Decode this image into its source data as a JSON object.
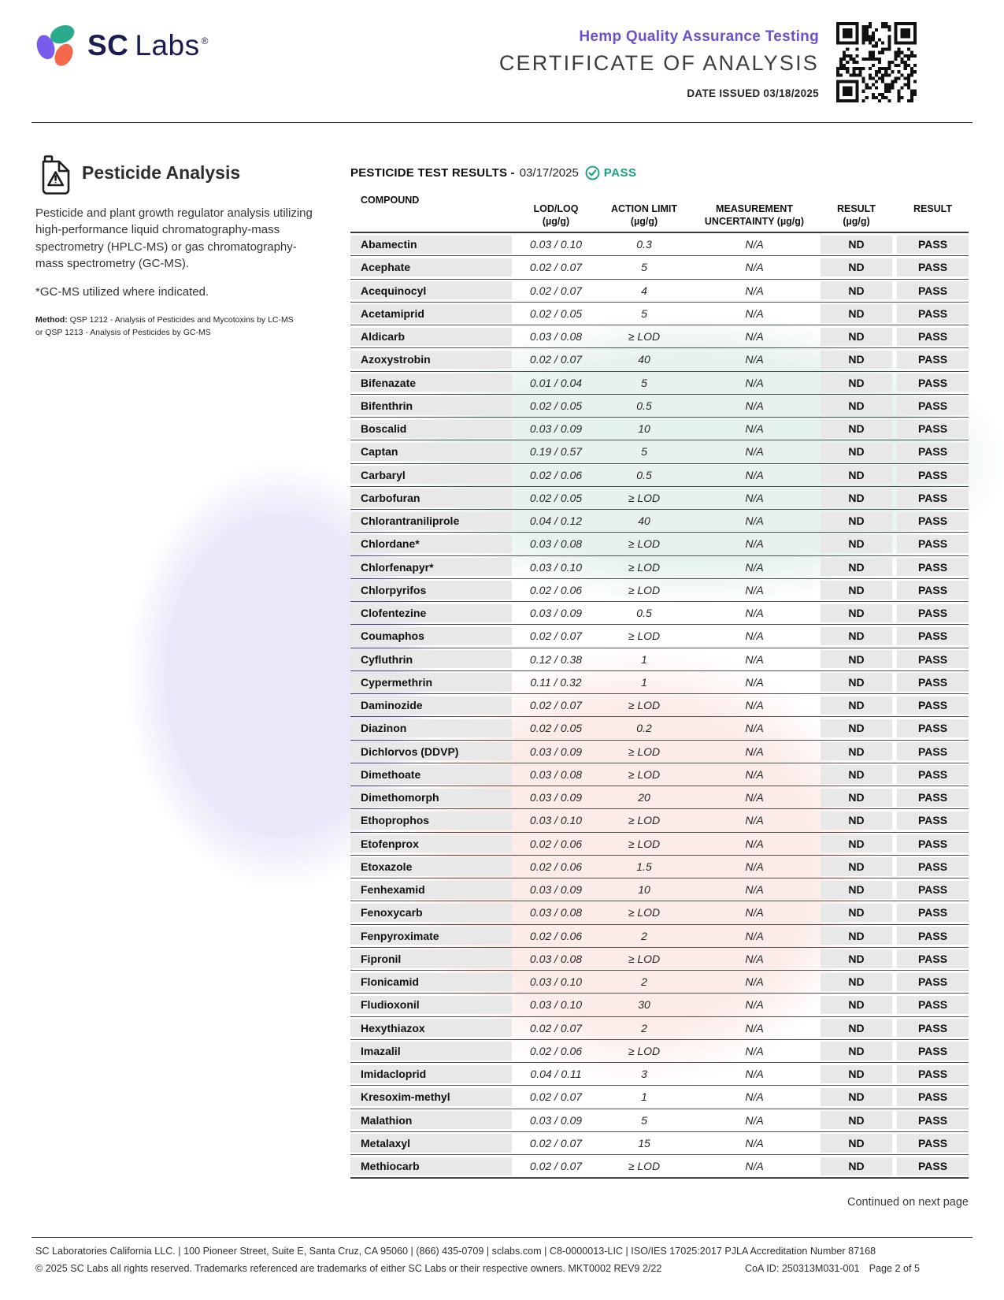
{
  "header": {
    "brand_sc": "SC",
    "brand_labs": "Labs",
    "registered": "®",
    "program": "Hemp Quality Assurance Testing",
    "title": "CERTIFICATE OF ANALYSIS",
    "date_issued_label": "DATE ISSUED",
    "date_issued_value": "03/18/2025"
  },
  "icons": {
    "logo_petals": "sc-labs-petals-icon",
    "qr": "qr-code",
    "section": "pesticide-jug-warning-icon",
    "pass_check": "check-circle-icon"
  },
  "colors": {
    "accent_purple": "#6a52c8",
    "pass_green": "#17a380",
    "brand_navy": "#1c1c4e",
    "table_gray": "#e8e8e8"
  },
  "section": {
    "title": "Pesticide Analysis",
    "description": "Pesticide and plant growth regulator analysis utilizing high-performance liquid chromatography-mass spectrometry (HPLC-MS) or gas chromatography-mass spectrometry (GC-MS).",
    "note": "*GC-MS utilized where indicated.",
    "method_label": "Method:",
    "method": " QSP 1212 - Analysis of Pesticides and Mycotoxins by LC-MS or QSP 1213 - Analysis of Pesticides by GC-MS"
  },
  "results": {
    "heading": "PESTICIDE TEST RESULTS -",
    "date": "03/17/2025",
    "status": "PASS",
    "columns": [
      {
        "line1": "COMPOUND",
        "line2": ""
      },
      {
        "line1": "LOD/LOQ",
        "line2": "(µg/g)"
      },
      {
        "line1": "ACTION LIMIT",
        "line2": "(µg/g)"
      },
      {
        "line1": "MEASUREMENT",
        "line2": "UNCERTAINTY (µg/g)"
      },
      {
        "line1": "RESULT",
        "line2": "(µg/g)"
      },
      {
        "line1": "RESULT",
        "line2": ""
      }
    ],
    "rows": [
      {
        "compound": "Abamectin",
        "lod_loq": "0.03 / 0.10",
        "action_limit": "0.3",
        "uncertainty": "N/A",
        "result": "ND",
        "status": "PASS"
      },
      {
        "compound": "Acephate",
        "lod_loq": "0.02 / 0.07",
        "action_limit": "5",
        "uncertainty": "N/A",
        "result": "ND",
        "status": "PASS"
      },
      {
        "compound": "Acequinocyl",
        "lod_loq": "0.02 / 0.07",
        "action_limit": "4",
        "uncertainty": "N/A",
        "result": "ND",
        "status": "PASS"
      },
      {
        "compound": "Acetamiprid",
        "lod_loq": "0.02 / 0.05",
        "action_limit": "5",
        "uncertainty": "N/A",
        "result": "ND",
        "status": "PASS"
      },
      {
        "compound": "Aldicarb",
        "lod_loq": "0.03 / 0.08",
        "action_limit": "≥ LOD",
        "uncertainty": "N/A",
        "result": "ND",
        "status": "PASS"
      },
      {
        "compound": "Azoxystrobin",
        "lod_loq": "0.02 / 0.07",
        "action_limit": "40",
        "uncertainty": "N/A",
        "result": "ND",
        "status": "PASS"
      },
      {
        "compound": "Bifenazate",
        "lod_loq": "0.01 / 0.04",
        "action_limit": "5",
        "uncertainty": "N/A",
        "result": "ND",
        "status": "PASS"
      },
      {
        "compound": "Bifenthrin",
        "lod_loq": "0.02 / 0.05",
        "action_limit": "0.5",
        "uncertainty": "N/A",
        "result": "ND",
        "status": "PASS"
      },
      {
        "compound": "Boscalid",
        "lod_loq": "0.03 / 0.09",
        "action_limit": "10",
        "uncertainty": "N/A",
        "result": "ND",
        "status": "PASS"
      },
      {
        "compound": "Captan",
        "lod_loq": "0.19 / 0.57",
        "action_limit": "5",
        "uncertainty": "N/A",
        "result": "ND",
        "status": "PASS"
      },
      {
        "compound": "Carbaryl",
        "lod_loq": "0.02 / 0.06",
        "action_limit": "0.5",
        "uncertainty": "N/A",
        "result": "ND",
        "status": "PASS"
      },
      {
        "compound": "Carbofuran",
        "lod_loq": "0.02 / 0.05",
        "action_limit": "≥ LOD",
        "uncertainty": "N/A",
        "result": "ND",
        "status": "PASS"
      },
      {
        "compound": "Chlorantraniliprole",
        "lod_loq": "0.04 / 0.12",
        "action_limit": "40",
        "uncertainty": "N/A",
        "result": "ND",
        "status": "PASS"
      },
      {
        "compound": "Chlordane*",
        "lod_loq": "0.03 / 0.08",
        "action_limit": "≥ LOD",
        "uncertainty": "N/A",
        "result": "ND",
        "status": "PASS"
      },
      {
        "compound": "Chlorfenapyr*",
        "lod_loq": "0.03 / 0.10",
        "action_limit": "≥ LOD",
        "uncertainty": "N/A",
        "result": "ND",
        "status": "PASS"
      },
      {
        "compound": "Chlorpyrifos",
        "lod_loq": "0.02 / 0.06",
        "action_limit": "≥ LOD",
        "uncertainty": "N/A",
        "result": "ND",
        "status": "PASS"
      },
      {
        "compound": "Clofentezine",
        "lod_loq": "0.03 / 0.09",
        "action_limit": "0.5",
        "uncertainty": "N/A",
        "result": "ND",
        "status": "PASS"
      },
      {
        "compound": "Coumaphos",
        "lod_loq": "0.02 / 0.07",
        "action_limit": "≥ LOD",
        "uncertainty": "N/A",
        "result": "ND",
        "status": "PASS"
      },
      {
        "compound": "Cyfluthrin",
        "lod_loq": "0.12 / 0.38",
        "action_limit": "1",
        "uncertainty": "N/A",
        "result": "ND",
        "status": "PASS"
      },
      {
        "compound": "Cypermethrin",
        "lod_loq": "0.11 / 0.32",
        "action_limit": "1",
        "uncertainty": "N/A",
        "result": "ND",
        "status": "PASS"
      },
      {
        "compound": "Daminozide",
        "lod_loq": "0.02 / 0.07",
        "action_limit": "≥ LOD",
        "uncertainty": "N/A",
        "result": "ND",
        "status": "PASS"
      },
      {
        "compound": "Diazinon",
        "lod_loq": "0.02 / 0.05",
        "action_limit": "0.2",
        "uncertainty": "N/A",
        "result": "ND",
        "status": "PASS"
      },
      {
        "compound": "Dichlorvos (DDVP)",
        "lod_loq": "0.03 / 0.09",
        "action_limit": "≥ LOD",
        "uncertainty": "N/A",
        "result": "ND",
        "status": "PASS"
      },
      {
        "compound": "Dimethoate",
        "lod_loq": "0.03 / 0.08",
        "action_limit": "≥ LOD",
        "uncertainty": "N/A",
        "result": "ND",
        "status": "PASS"
      },
      {
        "compound": "Dimethomorph",
        "lod_loq": "0.03 / 0.09",
        "action_limit": "20",
        "uncertainty": "N/A",
        "result": "ND",
        "status": "PASS"
      },
      {
        "compound": "Ethoprophos",
        "lod_loq": "0.03 / 0.10",
        "action_limit": "≥ LOD",
        "uncertainty": "N/A",
        "result": "ND",
        "status": "PASS"
      },
      {
        "compound": "Etofenprox",
        "lod_loq": "0.02 / 0.06",
        "action_limit": "≥ LOD",
        "uncertainty": "N/A",
        "result": "ND",
        "status": "PASS"
      },
      {
        "compound": "Etoxazole",
        "lod_loq": "0.02 / 0.06",
        "action_limit": "1.5",
        "uncertainty": "N/A",
        "result": "ND",
        "status": "PASS"
      },
      {
        "compound": "Fenhexamid",
        "lod_loq": "0.03 / 0.09",
        "action_limit": "10",
        "uncertainty": "N/A",
        "result": "ND",
        "status": "PASS"
      },
      {
        "compound": "Fenoxycarb",
        "lod_loq": "0.03 / 0.08",
        "action_limit": "≥ LOD",
        "uncertainty": "N/A",
        "result": "ND",
        "status": "PASS"
      },
      {
        "compound": "Fenpyroximate",
        "lod_loq": "0.02 / 0.06",
        "action_limit": "2",
        "uncertainty": "N/A",
        "result": "ND",
        "status": "PASS"
      },
      {
        "compound": "Fipronil",
        "lod_loq": "0.03 / 0.08",
        "action_limit": "≥ LOD",
        "uncertainty": "N/A",
        "result": "ND",
        "status": "PASS"
      },
      {
        "compound": "Flonicamid",
        "lod_loq": "0.03 / 0.10",
        "action_limit": "2",
        "uncertainty": "N/A",
        "result": "ND",
        "status": "PASS"
      },
      {
        "compound": "Fludioxonil",
        "lod_loq": "0.03 / 0.10",
        "action_limit": "30",
        "uncertainty": "N/A",
        "result": "ND",
        "status": "PASS"
      },
      {
        "compound": "Hexythiazox",
        "lod_loq": "0.02 / 0.07",
        "action_limit": "2",
        "uncertainty": "N/A",
        "result": "ND",
        "status": "PASS"
      },
      {
        "compound": "Imazalil",
        "lod_loq": "0.02 / 0.06",
        "action_limit": "≥ LOD",
        "uncertainty": "N/A",
        "result": "ND",
        "status": "PASS"
      },
      {
        "compound": "Imidacloprid",
        "lod_loq": "0.04 / 0.11",
        "action_limit": "3",
        "uncertainty": "N/A",
        "result": "ND",
        "status": "PASS"
      },
      {
        "compound": "Kresoxim-methyl",
        "lod_loq": "0.02 / 0.07",
        "action_limit": "1",
        "uncertainty": "N/A",
        "result": "ND",
        "status": "PASS"
      },
      {
        "compound": "Malathion",
        "lod_loq": "0.03 / 0.09",
        "action_limit": "5",
        "uncertainty": "N/A",
        "result": "ND",
        "status": "PASS"
      },
      {
        "compound": "Metalaxyl",
        "lod_loq": "0.02 / 0.07",
        "action_limit": "15",
        "uncertainty": "N/A",
        "result": "ND",
        "status": "PASS"
      },
      {
        "compound": "Methiocarb",
        "lod_loq": "0.02 / 0.07",
        "action_limit": "≥ LOD",
        "uncertainty": "N/A",
        "result": "ND",
        "status": "PASS"
      }
    ]
  },
  "continued": "Continued on next page",
  "footer": {
    "line1": "SC Laboratories California LLC. | 100 Pioneer Street, Suite E, Santa Cruz, CA 95060 | (866) 435-0709 | sclabs.com | C8-0000013-LIC | ISO/IES 17025:2017 PJLA Accreditation Number 87168",
    "line2": "© 2025 SC Labs all rights reserved. Trademarks referenced are trademarks of either SC Labs or their respective owners. MKT0002 REV9 2/22",
    "coa_id": "CoA ID: 250313M031-001",
    "page_num": "Page 2 of 5"
  }
}
